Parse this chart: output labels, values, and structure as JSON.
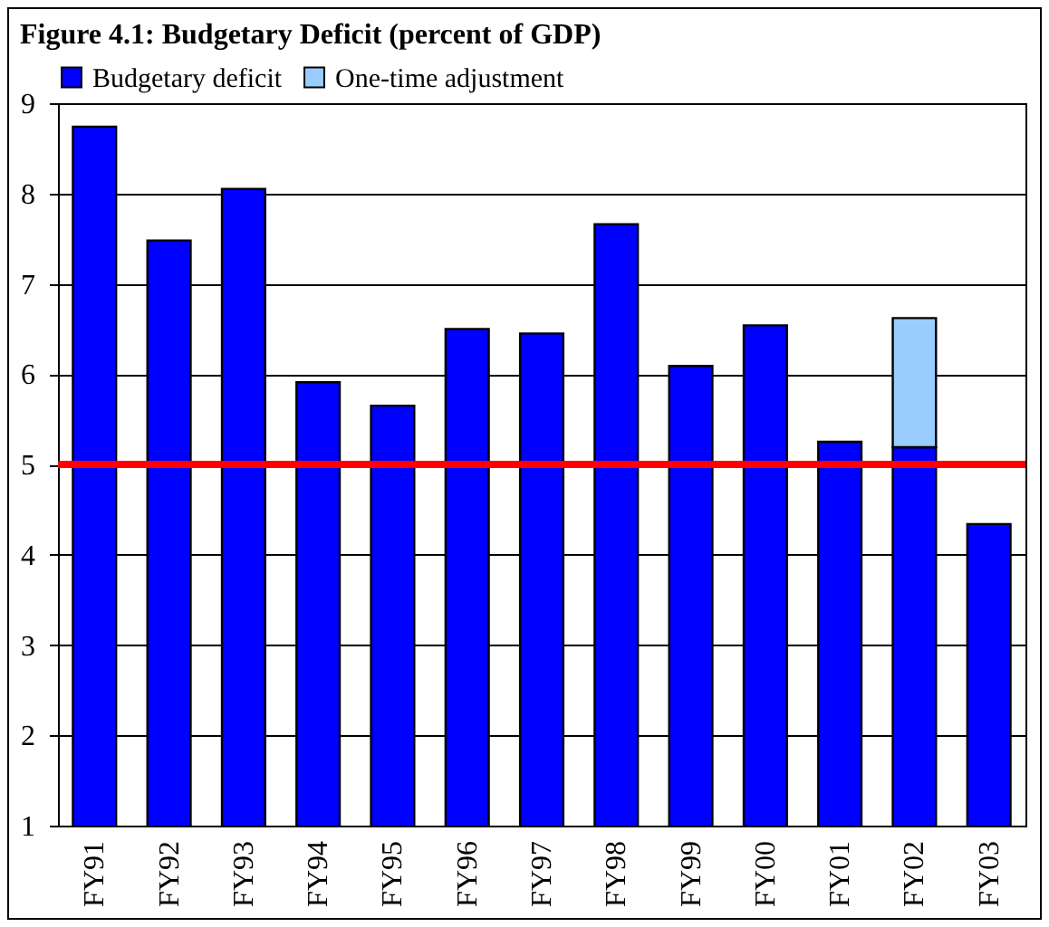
{
  "chart_data": {
    "type": "bar",
    "title": "Figure 4.1: Budgetary Deficit (percent of GDP)",
    "categories": [
      "FY91",
      "FY92",
      "FY93",
      "FY94",
      "FY95",
      "FY96",
      "FY97",
      "FY98",
      "FY99",
      "FY00",
      "FY01",
      "FY02",
      "FY03"
    ],
    "series": [
      {
        "name": "Budgetary deficit",
        "color": "#0000ff",
        "values": [
          8.74,
          7.48,
          8.05,
          5.91,
          5.65,
          6.5,
          6.45,
          7.66,
          6.09,
          6.54,
          5.25,
          5.19,
          4.34
        ]
      },
      {
        "name": "One-time adjustment",
        "color": "#99ccff",
        "values": [
          null,
          null,
          null,
          null,
          null,
          null,
          null,
          null,
          null,
          null,
          null,
          1.43,
          null
        ]
      }
    ],
    "stacked": true,
    "ylim": [
      1,
      9
    ],
    "yticks": [
      1,
      2,
      3,
      4,
      5,
      6,
      7,
      8,
      9
    ],
    "ref_lines": [
      {
        "axis": "y",
        "value": 5,
        "color": "#ff0000"
      }
    ],
    "grid": "y",
    "legend": "top left"
  }
}
